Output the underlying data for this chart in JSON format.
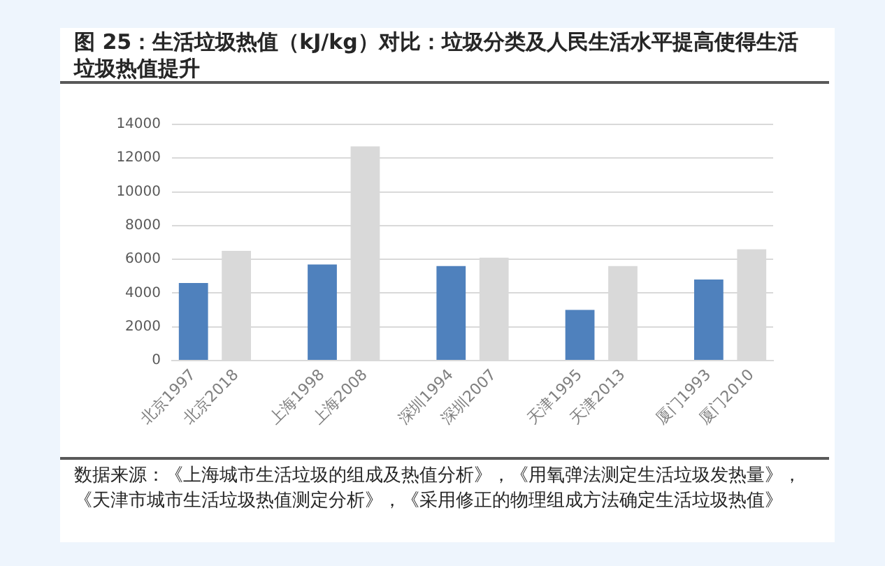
{
  "chart_data": {
    "type": "bar",
    "title": "图 25：生活垃圾热值（kJ/kg）对比：垃圾分类及人民生活水平提高使得生活垃圾热值提升",
    "categories": [
      "北京1997",
      "北京2018",
      null,
      "上海1998",
      "上海2008",
      null,
      "深圳1994",
      "深圳2007",
      null,
      "天津1995",
      "天津2013",
      null,
      "厦门1993",
      "厦门2010"
    ],
    "values": [
      4600,
      6500,
      null,
      5700,
      12700,
      null,
      5600,
      6100,
      null,
      3000,
      5600,
      null,
      4800,
      6600
    ],
    "colors": [
      "#4f81bd",
      "#d9d9d9",
      null,
      "#4f81bd",
      "#d9d9d9",
      null,
      "#4f81bd",
      "#d9d9d9",
      null,
      "#4f81bd",
      "#d9d9d9",
      null,
      "#4f81bd",
      "#d9d9d9"
    ],
    "ylim": [
      0,
      14000
    ],
    "yticks": [
      0,
      2000,
      4000,
      6000,
      8000,
      10000,
      12000,
      14000
    ],
    "grid": "y",
    "annotations": [
      "数据来源：《上海城市生活垃圾的组成及热值分析》，《用氧弹法测定生活垃圾发热量》，《天津市城市生活垃圾热值测定分析》，《采用修正的物理组成方法确定生活垃圾热值》"
    ]
  }
}
